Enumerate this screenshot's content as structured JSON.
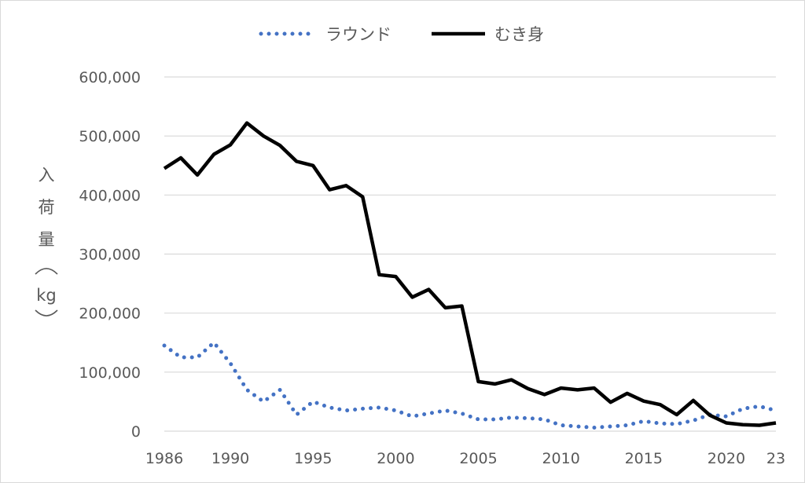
{
  "chart_data": {
    "type": "line",
    "ylabel": "入荷量（kg）",
    "ylim": [
      0,
      600000
    ],
    "y_ticks": [
      "0",
      "100,000",
      "200,000",
      "300,000",
      "400,000",
      "500,000",
      "600,000"
    ],
    "x_ticks": [
      "1986",
      "1990",
      "1995",
      "2000",
      "2005",
      "2010",
      "2015",
      "2020",
      "23"
    ],
    "grid": true,
    "legend_position": "top",
    "x": [
      1986,
      1987,
      1988,
      1989,
      1990,
      1991,
      1992,
      1993,
      1994,
      1995,
      1996,
      1997,
      1998,
      1999,
      2000,
      2001,
      2002,
      2003,
      2004,
      2005,
      2006,
      2007,
      2008,
      2009,
      2010,
      2011,
      2012,
      2013,
      2014,
      2015,
      2016,
      2017,
      2018,
      2019,
      2020,
      2021,
      2022,
      2023
    ],
    "series": [
      {
        "name": "ラウンド",
        "style": "dotted",
        "color": "#4472c4",
        "values": [
          145000,
          125000,
          125000,
          150000,
          115000,
          70000,
          50000,
          70000,
          28000,
          50000,
          40000,
          35000,
          38000,
          40000,
          35000,
          25000,
          30000,
          35000,
          30000,
          20000,
          20000,
          23000,
          22000,
          20000,
          10000,
          8000,
          6000,
          8000,
          10000,
          17000,
          13000,
          12000,
          18000,
          28000,
          25000,
          38000,
          42000,
          35000
        ]
      },
      {
        "name": "むき身",
        "style": "solid",
        "color": "#000000",
        "values": [
          445000,
          463000,
          434000,
          469000,
          485000,
          522000,
          500000,
          484000,
          457000,
          450000,
          409000,
          416000,
          397000,
          265000,
          262000,
          227000,
          240000,
          209000,
          212000,
          84000,
          80000,
          87000,
          72000,
          62000,
          73000,
          70000,
          73000,
          49000,
          64000,
          51000,
          45000,
          28000,
          52000,
          27000,
          14000,
          11000,
          10000,
          14000
        ]
      }
    ]
  }
}
